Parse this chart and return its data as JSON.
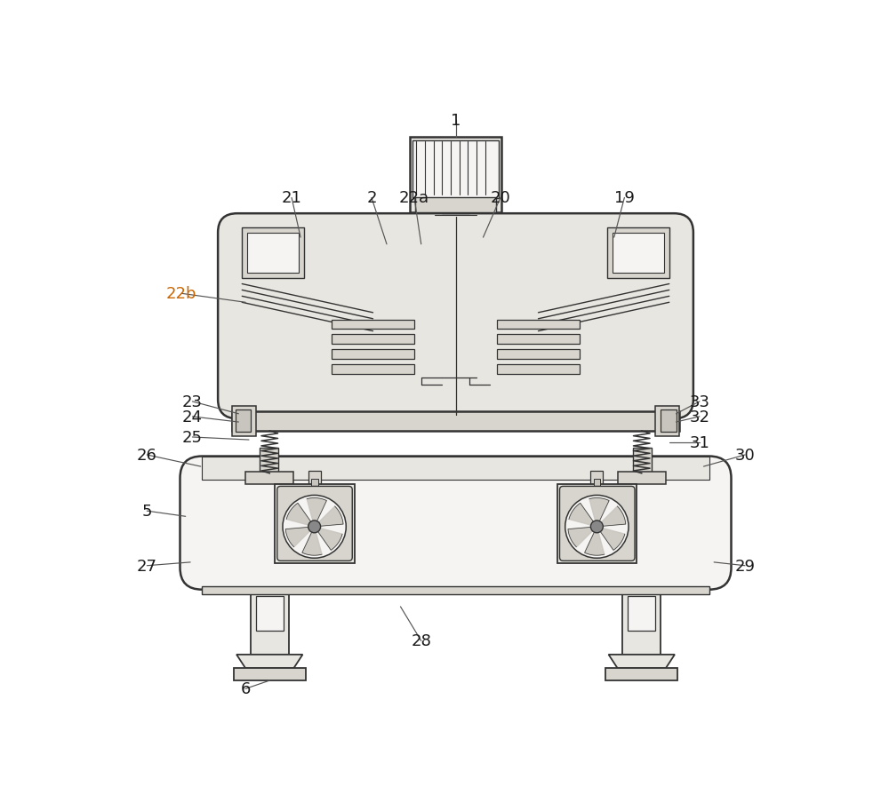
{
  "bg_color": "#ffffff",
  "line_color": "#333333",
  "fill_light": "#e8e6e0",
  "fill_mid": "#d8d5ce",
  "fill_dark": "#c8c5be",
  "fill_white": "#f5f4f2",
  "fig_width": 10.0,
  "fig_height": 8.87,
  "label_color_default": "#1a1a1a",
  "label_color_22b": "#cc6600"
}
